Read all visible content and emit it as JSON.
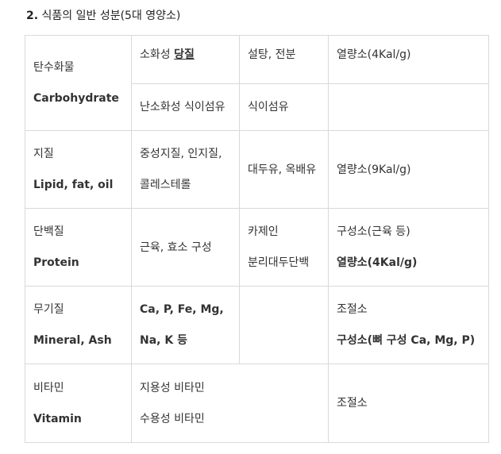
{
  "heading": {
    "number": "2.",
    "title": "식품의 일반 성분(5대 영양소)"
  },
  "rows": [
    {
      "name_ko": "탄수화물",
      "name_en": "Carbohydrate",
      "sub": [
        {
          "type_prefix": "소화성 ",
          "type_emph": "당질",
          "foods": "설탕, 전분",
          "role": "열량소(4Kal/g)"
        },
        {
          "type": "난소화성 식이섬유",
          "foods": "식이섬유",
          "role": ""
        }
      ]
    },
    {
      "name_ko": "지질",
      "name_en": "Lipid, fat, oil",
      "type_line1": "중성지질, 인지질,",
      "type_line2": "콜레스테롤",
      "foods": "대두유, 옥배유",
      "role": "열량소(9Kal/g)"
    },
    {
      "name_ko": "단백질",
      "name_en": "Protein",
      "type": "근육, 효소 구성",
      "foods_line1": "카제인",
      "foods_line2": "분리대두단백",
      "role_line1": "구성소(근육 등)",
      "role_line2": "열량소(4Kal/g)"
    },
    {
      "name_ko": "무기질",
      "name_en": "Mineral, Ash",
      "type_line1": "Ca, P, Fe, Mg,",
      "type_line2": "Na, K 등",
      "foods": "",
      "role_line1": "조절소",
      "role_line2": "구성소(뼈 구성 Ca, Mg, P)"
    },
    {
      "name_ko": "비타민",
      "name_en": "Vitamin",
      "type_line1": "지용성 비타민",
      "type_line2": "수용성 비타민",
      "role": "조절소"
    }
  ]
}
